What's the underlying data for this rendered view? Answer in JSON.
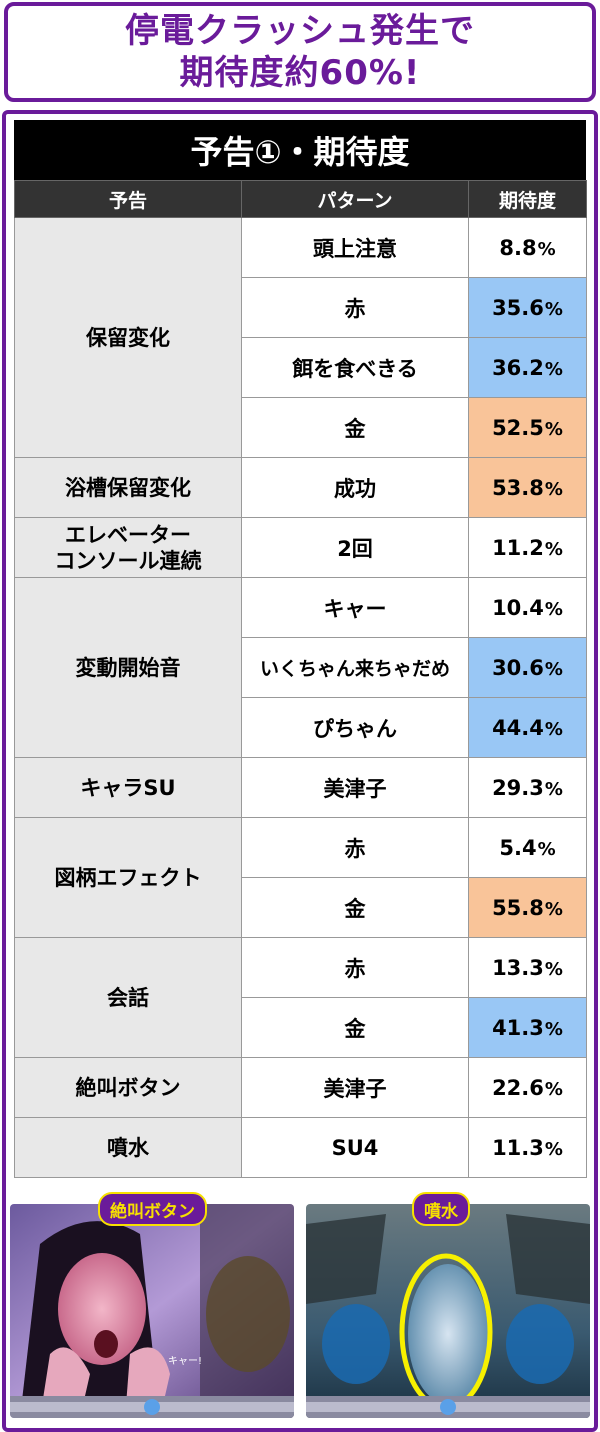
{
  "header": {
    "line1": "停電クラッシュ発生で",
    "line2": "期待度約60%!"
  },
  "table": {
    "title": "予告①・期待度",
    "headers": [
      "予告",
      "パターン",
      "期待度"
    ],
    "percent_sign": "%",
    "groups": [
      {
        "category": "保留変化",
        "rows": [
          {
            "pattern": "頭上注意",
            "value": "8.8",
            "highlight": "none"
          },
          {
            "pattern": "赤",
            "value": "35.6",
            "highlight": "blue"
          },
          {
            "pattern": "餌を食べきる",
            "value": "36.2",
            "highlight": "blue"
          },
          {
            "pattern": "金",
            "value": "52.5",
            "highlight": "orange"
          }
        ]
      },
      {
        "category": "浴槽保留変化",
        "rows": [
          {
            "pattern": "成功",
            "value": "53.8",
            "highlight": "orange"
          }
        ]
      },
      {
        "category": "エレベーター\nコンソール連続",
        "rows": [
          {
            "pattern": "2回",
            "value": "11.2",
            "highlight": "none"
          }
        ]
      },
      {
        "category": "変動開始音",
        "rows": [
          {
            "pattern": "キャー",
            "value": "10.4",
            "highlight": "none"
          },
          {
            "pattern": "いくちゃん来ちゃだめ",
            "value": "30.6",
            "highlight": "blue"
          },
          {
            "pattern": "ぴちゃん",
            "value": "44.4",
            "highlight": "blue"
          }
        ]
      },
      {
        "category": "キャラSU",
        "rows": [
          {
            "pattern": "美津子",
            "value": "29.3",
            "highlight": "none"
          }
        ]
      },
      {
        "category": "図柄エフェクト",
        "rows": [
          {
            "pattern": "赤",
            "value": "5.4",
            "highlight": "none"
          },
          {
            "pattern": "金",
            "value": "55.8",
            "highlight": "orange"
          }
        ]
      },
      {
        "category": "会話",
        "rows": [
          {
            "pattern": "赤",
            "value": "13.3",
            "highlight": "none"
          },
          {
            "pattern": "金",
            "value": "41.3",
            "highlight": "blue"
          }
        ]
      },
      {
        "category": "絶叫ボタン",
        "rows": [
          {
            "pattern": "美津子",
            "value": "22.6",
            "highlight": "none"
          }
        ]
      },
      {
        "category": "噴水",
        "rows": [
          {
            "pattern": "SU4",
            "value": "11.3",
            "highlight": "none"
          }
        ]
      }
    ]
  },
  "images": [
    {
      "label": "絶叫ボタン",
      "caption": "キャー!"
    },
    {
      "label": "噴水",
      "caption": ""
    }
  ],
  "colors": {
    "accent": "#6a1b9a",
    "blue_highlight": "#99c7f5",
    "orange_highlight": "#f9c499",
    "label_text": "#f7e000"
  }
}
